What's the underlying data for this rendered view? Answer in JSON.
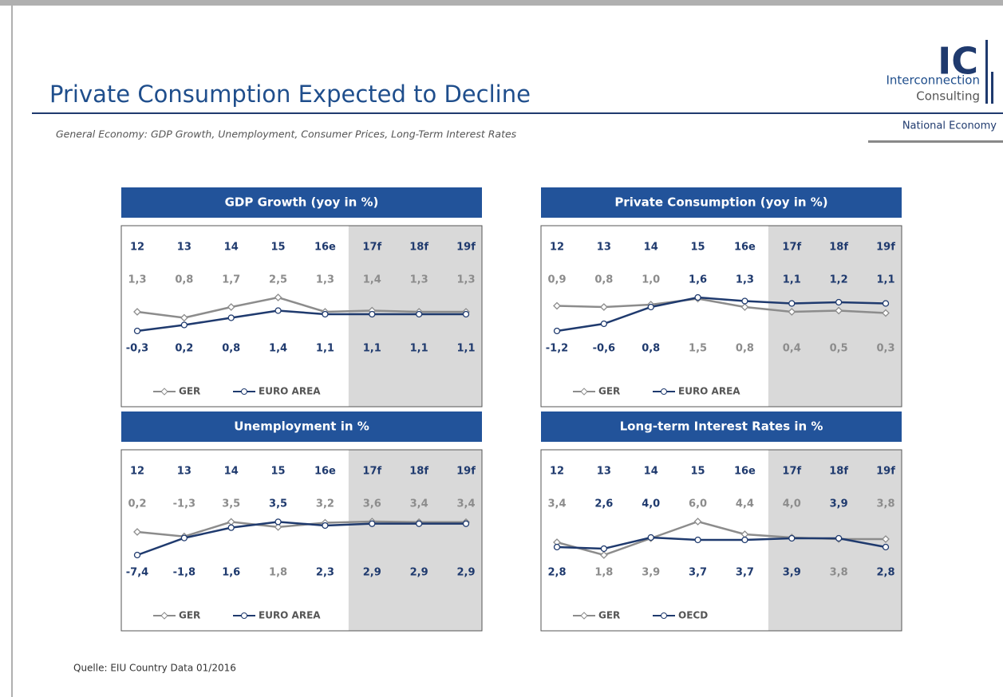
{
  "header": {
    "title": "Private Consumption Expected to Decline",
    "subtitle": "General Economy: GDP Growth, Unemployment, Consumer Prices, Long-Term Interest Rates",
    "logo": {
      "mark": "IC",
      "line1": "Interconnection",
      "line2": "Consulting"
    },
    "section": "National Economy"
  },
  "source": "Quelle: EIU Country Data 01/2016",
  "chart_data": [
    {
      "type": "line",
      "title": "GDP Growth (yoy in %)",
      "categories": [
        "12",
        "13",
        "14",
        "15",
        "16e",
        "17f",
        "18f",
        "19f"
      ],
      "series": [
        {
          "name": "GER",
          "color": "#8c8c8c",
          "values": [
            1.3,
            0.8,
            1.7,
            2.5,
            1.3,
            1.4,
            1.3,
            1.3
          ],
          "value_labels": [
            "1,3",
            "0,8",
            "1,7",
            "2,5",
            "1,3",
            "1,4",
            "1,3",
            "1,3"
          ]
        },
        {
          "name": "EURO AREA",
          "color": "#1f3a6e",
          "values": [
            -0.3,
            0.2,
            0.8,
            1.4,
            1.1,
            1.1,
            1.1,
            1.1
          ],
          "value_labels": [
            "-0,3",
            "0,2",
            "0,8",
            "1,4",
            "1,1",
            "1,1",
            "1,1",
            "1,1"
          ]
        }
      ]
    },
    {
      "type": "line",
      "title": "Private Consumption (yoy in %)",
      "categories": [
        "12",
        "13",
        "14",
        "15",
        "16e",
        "17f",
        "18f",
        "19f"
      ],
      "series": [
        {
          "name": "GER",
          "color": "#8c8c8c",
          "values": [
            0.9,
            0.8,
            1.0,
            1.5,
            0.8,
            0.4,
            0.5,
            0.3
          ],
          "value_labels": [
            "0,9",
            "0,8",
            "1,0",
            "1,5",
            "0,8",
            "0,4",
            "0,5",
            "0,3"
          ]
        },
        {
          "name": "EURO AREA",
          "color": "#1f3a6e",
          "values": [
            -1.2,
            -0.6,
            0.8,
            1.6,
            1.3,
            1.1,
            1.2,
            1.1
          ],
          "value_labels": [
            "-1,2",
            "-0,6",
            "0,8",
            "1,6",
            "1,3",
            "1,1",
            "1,2",
            "1,1"
          ]
        }
      ]
    },
    {
      "type": "line",
      "title": "Unemployment in %",
      "categories": [
        "12",
        "13",
        "14",
        "15",
        "16e",
        "17f",
        "18f",
        "19f"
      ],
      "series": [
        {
          "name": "GER",
          "color": "#8c8c8c",
          "values": [
            0.2,
            -1.3,
            3.5,
            1.8,
            3.2,
            3.6,
            3.4,
            3.4
          ],
          "value_labels": [
            "0,2",
            "-1,3",
            "3,5",
            "1,8",
            "3,2",
            "3,6",
            "3,4",
            "3,4"
          ]
        },
        {
          "name": "EURO AREA",
          "color": "#1f3a6e",
          "values": [
            -7.4,
            -1.8,
            1.6,
            3.5,
            2.3,
            2.9,
            2.9,
            2.9
          ],
          "value_labels": [
            "-7,4",
            "-1,8",
            "1,6",
            "3,5",
            "2,3",
            "2,9",
            "2,9",
            "2,9"
          ]
        }
      ]
    },
    {
      "type": "line",
      "title": "Long-term Interest Rates in %",
      "categories": [
        "12",
        "13",
        "14",
        "15",
        "16e",
        "17f",
        "18f",
        "19f"
      ],
      "series": [
        {
          "name": "GER",
          "color": "#8c8c8c",
          "values": [
            3.4,
            1.8,
            3.9,
            6.0,
            4.4,
            4.0,
            3.8,
            3.8
          ],
          "value_labels": [
            "3,4",
            "1,8",
            "3,9",
            "6,0",
            "4,4",
            "4,0",
            "3,8",
            "3,8"
          ]
        },
        {
          "name": "OECD",
          "color": "#1f3a6e",
          "values": [
            2.8,
            2.6,
            4.0,
            3.7,
            3.7,
            3.9,
            3.9,
            2.8
          ],
          "value_labels": [
            "2,8",
            "2,6",
            "4,0",
            "3,7",
            "3,7",
            "3,9",
            "3,9",
            "2,8"
          ]
        }
      ]
    }
  ]
}
